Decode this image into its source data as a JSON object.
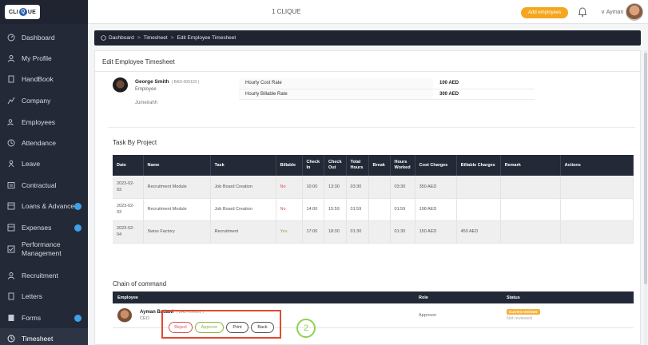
{
  "topbar": {
    "logo_text_left": "CLI",
    "logo_q": "Q",
    "logo_text_right": "UE",
    "app_title": "1 CLIQUE",
    "add_employee_label": "Add employees",
    "user_name": "Ayman"
  },
  "sidebar": {
    "items": [
      {
        "label": "Dashboard",
        "icon": "dashboard-icon"
      },
      {
        "label": "My Profile",
        "icon": "user-icon"
      },
      {
        "label": "HandBook",
        "icon": "document-icon"
      },
      {
        "label": "Company",
        "icon": "building-icon"
      },
      {
        "label": "Employees",
        "icon": "users-icon"
      },
      {
        "label": "Attendance",
        "icon": "clock-icon"
      },
      {
        "label": "Leave",
        "icon": "leave-icon"
      },
      {
        "label": "Contractual",
        "icon": "contract-icon"
      },
      {
        "label": "Loans & Advances",
        "icon": "loan-icon"
      },
      {
        "label": "Expenses",
        "icon": "expense-icon"
      },
      {
        "label": "Performance Management",
        "icon": "check-icon"
      },
      {
        "label": "Recruitment",
        "icon": "recruit-icon"
      },
      {
        "label": "Letters",
        "icon": "letter-icon"
      },
      {
        "label": "Forms",
        "icon": "forms-icon"
      },
      {
        "label": "Timesheet",
        "icon": "timesheet-icon"
      }
    ]
  },
  "breadcrumb": {
    "items": [
      "Dashboard",
      "Timesheet",
      "Edit Employee Timesheet"
    ],
    "separator": ">"
  },
  "page": {
    "title": "Edit Employee Timesheet"
  },
  "employee": {
    "name": "George Smith",
    "id": "( BAD-000103 )",
    "role": "Employee",
    "location": "Jumeirahh"
  },
  "rates": [
    {
      "label": "Hourly Cost Rate",
      "value": "100 AED"
    },
    {
      "label": "Hourly Billable Rate",
      "value": "300 AED"
    }
  ],
  "task_section": {
    "title": "Task By Project",
    "headers": [
      "Date",
      "Name",
      "Task",
      "Billable",
      "Check In",
      "Check Out",
      "Total Hours",
      "Break",
      "Hours Worked",
      "Cost Charges",
      "Billable Charges",
      "Remark",
      "Actions"
    ],
    "rows": [
      {
        "date": "2023-02-03",
        "name": "Recruitment Module",
        "task": "Job Board Creation",
        "billable": "No",
        "check_in": "10:00",
        "check_out": "13:30",
        "total_hours": "03:30",
        "break": "",
        "hours_worked": "03:30",
        "cost_charges": "350 AED",
        "billable_charges": "",
        "remark": "",
        "actions": ""
      },
      {
        "date": "2023-02-03",
        "name": "Recruitment Module",
        "task": "Job Board Creation",
        "billable": "No",
        "check_in": "14:00",
        "check_out": "15:59",
        "total_hours": "01:59",
        "break": "",
        "hours_worked": "01:59",
        "cost_charges": "198 AED",
        "billable_charges": "",
        "remark": "",
        "actions": ""
      },
      {
        "date": "2023-02-04",
        "name": "Swiss Factory",
        "task": "Recruitment",
        "billable": "Yes",
        "check_in": "17:00",
        "check_out": "18:30",
        "total_hours": "01:30",
        "break": "",
        "hours_worked": "01:30",
        "cost_charges": "150 AED",
        "billable_charges": "450 AED",
        "remark": "",
        "actions": ""
      }
    ]
  },
  "chain_of_command": {
    "title": "Chain of command",
    "headers": [
      "Employee",
      "Role",
      "Status"
    ],
    "rows": [
      {
        "name": "Ayman Badawi",
        "id": "( BAD-000001 )",
        "position": "CEO",
        "role": "Approver",
        "badge": "Current reviewer",
        "status": "Not reviewed"
      }
    ]
  },
  "actions": {
    "reject_label": "Reject",
    "approve_label": "Approve",
    "print_label": "Print",
    "back_label": "Back",
    "step_marker": "2"
  },
  "colors": {
    "sidebar_bg": "#232936",
    "accent_orange": "#f4a71e",
    "reject_red": "#d9534f",
    "approve_green": "#8cb43b",
    "highlight_box": "#e04b2f",
    "step_green": "#8fd14f"
  }
}
